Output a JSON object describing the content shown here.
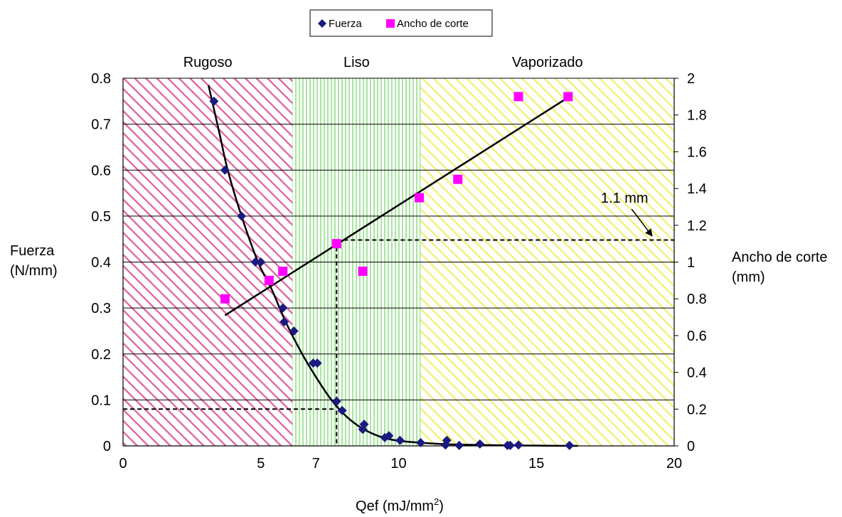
{
  "chart_data": {
    "type": "scatter",
    "xlabel": "Qef (mJ/mm",
    "xlabel_sup": "2",
    "xlabel_close": ")",
    "ylabel_left": [
      "Fuerza",
      "(N/mm)"
    ],
    "ylabel_right": [
      "Ancho de corte",
      "(mm)"
    ],
    "x_range": [
      0,
      20
    ],
    "y_left_range": [
      0,
      0.8
    ],
    "y_right_range": [
      0,
      2
    ],
    "x_ticks": [
      {
        "value": 0,
        "label": "0"
      },
      {
        "value": 5,
        "label": "5"
      },
      {
        "value": 7,
        "label": "7"
      },
      {
        "value": 10,
        "label": "10"
      },
      {
        "value": 15,
        "label": "15"
      },
      {
        "value": 20,
        "label": "20"
      }
    ],
    "y_left_ticks": [
      {
        "value": 0,
        "label": "0"
      },
      {
        "value": 0.1,
        "label": "0.1"
      },
      {
        "value": 0.2,
        "label": "0.2"
      },
      {
        "value": 0.3,
        "label": "0.3"
      },
      {
        "value": 0.4,
        "label": "0.4"
      },
      {
        "value": 0.5,
        "label": "0.5"
      },
      {
        "value": 0.6,
        "label": "0.6"
      },
      {
        "value": 0.7,
        "label": "0.7"
      },
      {
        "value": 0.8,
        "label": "0.8"
      }
    ],
    "y_right_ticks": [
      {
        "value": 0,
        "label": "0"
      },
      {
        "value": 0.2,
        "label": "0.2"
      },
      {
        "value": 0.4,
        "label": "0.4"
      },
      {
        "value": 0.6,
        "label": "0.6"
      },
      {
        "value": 0.8,
        "label": "0.8"
      },
      {
        "value": 1,
        "label": "1"
      },
      {
        "value": 1.2,
        "label": "1.2"
      },
      {
        "value": 1.4,
        "label": "1.4"
      },
      {
        "value": 1.6,
        "label": "1.6"
      },
      {
        "value": 1.8,
        "label": "1.8"
      },
      {
        "value": 2,
        "label": "2"
      }
    ],
    "grid": "horizontal",
    "legend_position": "top-center",
    "regions": [
      {
        "label": "Rugoso",
        "x_from": 0,
        "x_to": 6.15,
        "color": "#e0609e"
      },
      {
        "label": "Liso",
        "x_from": 6.15,
        "x_to": 10.8,
        "color": "#a8e6a0"
      },
      {
        "label": "Vaporizado",
        "x_from": 10.8,
        "x_to": 20,
        "color": "#f0f070"
      }
    ],
    "series": [
      {
        "name": "Fuerza",
        "axis": "left",
        "marker": "diamond",
        "color": "#1a1a80",
        "points": [
          [
            3.3,
            0.75
          ],
          [
            3.7,
            0.6
          ],
          [
            4.3,
            0.5
          ],
          [
            4.8,
            0.4
          ],
          [
            5.0,
            0.4
          ],
          [
            5.8,
            0.3
          ],
          [
            5.85,
            0.27
          ],
          [
            6.2,
            0.25
          ],
          [
            6.9,
            0.18
          ],
          [
            7.05,
            0.18
          ],
          [
            7.75,
            0.097
          ],
          [
            7.95,
            0.077
          ],
          [
            8.7,
            0.036
          ],
          [
            8.75,
            0.047
          ],
          [
            9.5,
            0.018
          ],
          [
            9.65,
            0.022
          ],
          [
            10.05,
            0.012
          ],
          [
            10.8,
            0.007
          ],
          [
            11.7,
            0.002
          ],
          [
            11.75,
            0.012
          ],
          [
            12.2,
            0.001
          ],
          [
            12.95,
            0.004
          ],
          [
            13.95,
            0.001
          ],
          [
            14.05,
            0.001
          ],
          [
            14.35,
            0.002
          ],
          [
            16.2,
            0.001
          ]
        ]
      },
      {
        "name": "Ancho de corte",
        "axis": "right",
        "marker": "square",
        "color": "#ff00ff",
        "points": [
          [
            3.7,
            0.8
          ],
          [
            5.3,
            0.9
          ],
          [
            5.8,
            0.95
          ],
          [
            7.75,
            1.1
          ],
          [
            8.7,
            0.95
          ],
          [
            10.75,
            1.35
          ],
          [
            12.15,
            1.45
          ],
          [
            14.35,
            1.9
          ],
          [
            16.15,
            1.9
          ]
        ]
      }
    ],
    "fuerza_trend": [
      [
        3.1,
        0.785
      ],
      [
        3.5,
        0.68
      ],
      [
        3.8,
        0.6
      ],
      [
        4.3,
        0.5
      ],
      [
        4.9,
        0.4
      ],
      [
        5.4,
        0.34
      ],
      [
        5.9,
        0.27
      ],
      [
        6.5,
        0.2
      ],
      [
        7.0,
        0.15
      ],
      [
        7.5,
        0.105
      ],
      [
        8.0,
        0.07
      ],
      [
        8.5,
        0.045
      ],
      [
        9.0,
        0.028
      ],
      [
        9.5,
        0.017
      ],
      [
        10.0,
        0.011
      ],
      [
        11.0,
        0.006
      ],
      [
        12.0,
        0.003
      ],
      [
        13.0,
        0.002
      ],
      [
        14.0,
        0.001
      ],
      [
        16.5,
        0.0
      ]
    ],
    "ancho_trend": [
      [
        3.7,
        0.71
      ],
      [
        16.2,
        1.9
      ]
    ],
    "reference_lines": {
      "x_value": 7.75,
      "left_y": 0.08,
      "right_y": 1.12
    },
    "annotation": {
      "text": "1.1 mm",
      "x": 18.2,
      "y_right": 1.35,
      "arrow_to": [
        19.2,
        1.13
      ]
    }
  }
}
